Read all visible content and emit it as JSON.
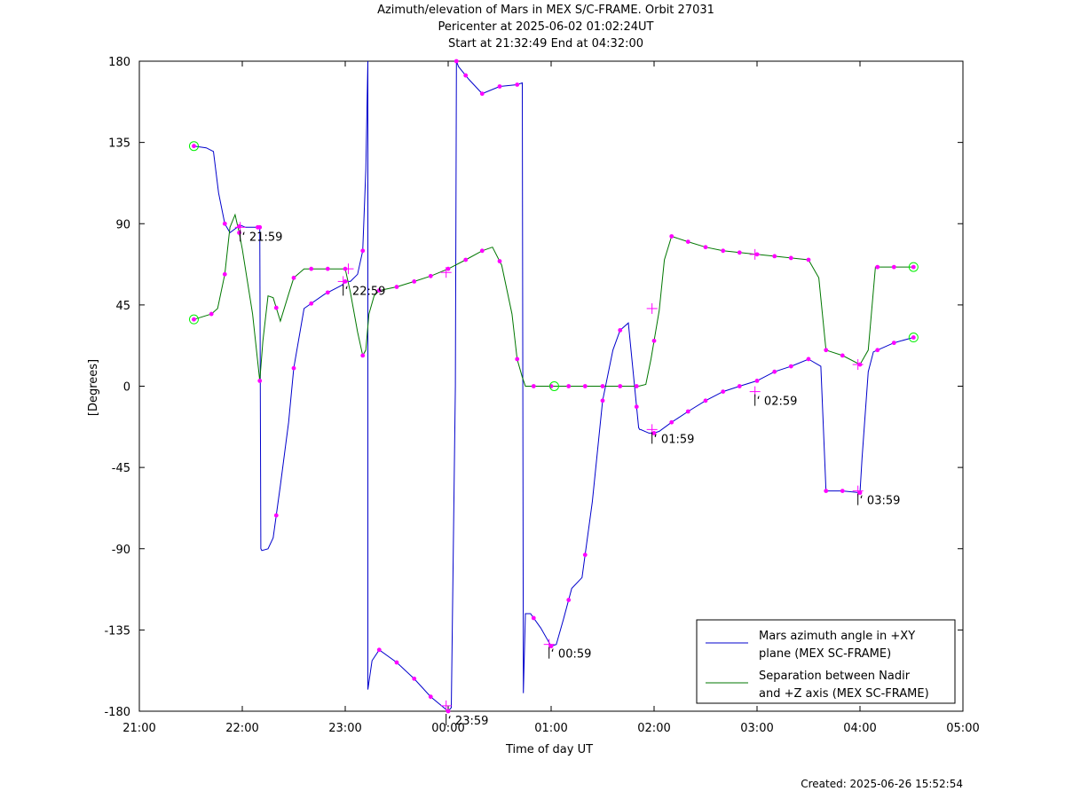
{
  "titles": {
    "line1": "Azimuth/elevation of Mars in MEX S/C-FRAME.  Orbit 27031",
    "line2": "Pericenter at 2025-06-02 01:02:24UT",
    "line3": "Start at 21:32:49 End at 04:32:00"
  },
  "footer": {
    "created": "Created: 2025-06-26 15:52:54"
  },
  "chart_data": {
    "type": "line",
    "xlabel": "Time of day UT",
    "ylabel": "[Degrees]",
    "xlim": [
      21.0,
      29.0
    ],
    "ylim": [
      -180,
      180
    ],
    "x_ticks": [
      21,
      22,
      23,
      24,
      25,
      26,
      27,
      28,
      29
    ],
    "x_tick_labels": [
      "21:00",
      "22:00",
      "23:00",
      "00:00",
      "01:00",
      "02:00",
      "03:00",
      "04:00",
      "05:00"
    ],
    "y_ticks": [
      180,
      135,
      90,
      45,
      0,
      -45,
      -90,
      -135,
      -180
    ],
    "y_tick_labels": [
      "180",
      "135",
      "90",
      "45",
      "0",
      "-45",
      "-90",
      "-135",
      "-180"
    ],
    "grid": false,
    "legend_position": "bottom-right",
    "colors": {
      "azimuth": "#0000cc",
      "separation": "#007700",
      "markers": "#ff00ff",
      "endpoints": "#00ee00"
    },
    "series": [
      {
        "name": "Mars azimuth angle in +XY plane (MEX SC-FRAME)",
        "legend_lines": [
          "Mars azimuth angle in +XY",
          "plane (MEX SC-FRAME)"
        ],
        "x": [
          21.53,
          21.65,
          21.72,
          21.77,
          21.83,
          21.88,
          21.95,
          21.99,
          22.03,
          22.1,
          22.17,
          22.18,
          22.19,
          22.25,
          22.3,
          22.37,
          22.45,
          22.5,
          22.6,
          22.8,
          22.97,
          23.0,
          23.05,
          23.12,
          23.17,
          23.2,
          23.22,
          23.22,
          23.26,
          23.33,
          23.5,
          23.67,
          23.83,
          24.0,
          24.03,
          24.07,
          24.08,
          24.1,
          24.2,
          24.33,
          24.5,
          24.67,
          24.72,
          24.73,
          24.75,
          24.8,
          24.9,
          25.0,
          25.05,
          25.12,
          25.2,
          25.3,
          25.4,
          25.5,
          25.6,
          25.67,
          25.75,
          25.85,
          25.86,
          25.87,
          25.95,
          26.0,
          26.05,
          26.17,
          26.33,
          26.5,
          26.67,
          26.83,
          27.0,
          27.17,
          27.33,
          27.5,
          27.62,
          27.67,
          27.83,
          28.0,
          28.02,
          28.08,
          28.13,
          28.33,
          28.52
        ],
        "y": [
          133,
          132,
          130,
          107,
          90,
          85,
          88,
          89,
          88,
          88,
          88,
          -90,
          -91,
          -90,
          -84,
          -55,
          -20,
          10,
          43,
          51,
          56,
          58,
          58,
          62,
          75,
          120,
          180,
          -168,
          -152,
          -146,
          -153,
          -162,
          -172,
          -180,
          -178,
          0,
          180,
          177,
          170,
          162,
          166,
          167,
          168,
          -170,
          -126,
          -126,
          -134,
          -144,
          -143,
          -129,
          -112,
          -106,
          -64,
          -8,
          20,
          31,
          35,
          -23,
          -24,
          -24,
          -26,
          -26,
          -25,
          -20,
          -14,
          -8,
          -3,
          0,
          3,
          8,
          11,
          15,
          11,
          -58,
          -58,
          -59,
          -40,
          8,
          19,
          24,
          27
        ]
      },
      {
        "name": "Separation between Nadir and +Z axis (MEX SC-FRAME)",
        "legend_lines": [
          "Separation between Nadir",
          "and +Z axis (MEX SC-FRAME)"
        ],
        "x": [
          21.53,
          21.7,
          21.76,
          21.83,
          21.88,
          21.93,
          21.97,
          22.0,
          22.1,
          22.17,
          22.2,
          22.25,
          22.3,
          22.37,
          22.45,
          22.5,
          22.6,
          22.75,
          22.9,
          23.0,
          23.05,
          23.12,
          23.17,
          23.2,
          23.23,
          23.28,
          23.33,
          23.5,
          23.67,
          23.83,
          24.0,
          24.17,
          24.33,
          24.43,
          24.52,
          24.62,
          24.67,
          24.72,
          24.75,
          25.0,
          25.5,
          25.85,
          25.92,
          25.97,
          26.05,
          26.1,
          26.17,
          26.33,
          26.5,
          26.67,
          26.83,
          27.0,
          27.17,
          27.33,
          27.5,
          27.6,
          27.67,
          27.83,
          28.0,
          28.08,
          28.15,
          28.33,
          28.52
        ],
        "y": [
          37,
          40,
          43,
          62,
          88,
          95,
          85,
          76,
          40,
          3,
          25,
          50,
          49,
          36,
          51,
          60,
          65,
          65,
          65,
          65,
          52,
          30,
          17,
          20,
          40,
          50,
          53,
          55,
          58,
          61,
          65,
          70,
          75,
          77,
          67,
          40,
          15,
          5,
          0,
          0,
          0,
          0,
          1,
          15,
          42,
          70,
          83,
          80,
          77,
          75,
          74,
          73,
          72,
          71,
          70,
          60,
          20,
          17,
          12,
          20,
          66,
          66,
          66
        ]
      }
    ],
    "magenta_markers": {
      "azimuth_x": [
        21.53,
        21.83,
        21.97,
        22.15,
        22.17,
        22.33,
        22.5,
        22.67,
        22.83,
        23.0,
        23.17,
        23.33,
        23.5,
        23.67,
        23.83,
        24.0,
        24.08,
        24.17,
        24.33,
        24.5,
        24.67,
        24.83,
        25.0,
        25.17,
        25.33,
        25.5,
        25.67,
        25.83,
        26.0,
        26.17,
        26.33,
        26.5,
        26.67,
        26.83,
        27.0,
        27.17,
        27.33,
        27.5,
        27.67,
        27.83,
        28.0,
        28.17,
        28.33,
        28.52
      ],
      "separation_x": [
        21.53,
        21.7,
        21.83,
        21.97,
        22.17,
        22.33,
        22.5,
        22.67,
        22.83,
        23.0,
        23.17,
        23.33,
        23.5,
        23.67,
        23.83,
        24.0,
        24.17,
        24.33,
        24.5,
        24.67,
        24.83,
        25.0,
        25.17,
        25.33,
        25.5,
        25.67,
        25.83,
        26.0,
        26.17,
        26.33,
        26.5,
        26.67,
        26.83,
        27.0,
        27.17,
        27.33,
        27.5,
        27.67,
        27.83,
        28.0,
        28.17,
        28.33,
        28.52
      ]
    },
    "cross_markers": [
      {
        "x": 21.98,
        "y": 88
      },
      {
        "x": 22.98,
        "y": 58
      },
      {
        "x": 23.03,
        "y": 65
      },
      {
        "x": 23.98,
        "y": 63
      },
      {
        "x": 23.98,
        "y": -177
      },
      {
        "x": 24.98,
        "y": -143
      },
      {
        "x": 25.98,
        "y": -24
      },
      {
        "x": 25.98,
        "y": 43
      },
      {
        "x": 26.98,
        "y": -3
      },
      {
        "x": 26.98,
        "y": 73
      },
      {
        "x": 27.98,
        "y": -58
      },
      {
        "x": 27.98,
        "y": 12
      }
    ],
    "endpoint_circles": [
      {
        "x": 21.53,
        "y": 133
      },
      {
        "x": 21.53,
        "y": 37
      },
      {
        "x": 25.03,
        "y": 0
      },
      {
        "x": 28.52,
        "y": 27
      },
      {
        "x": 28.52,
        "y": 66
      }
    ],
    "annotations": [
      {
        "text": "21:59",
        "x": 21.98,
        "y": 88
      },
      {
        "text": "22:59",
        "x": 22.98,
        "y": 58
      },
      {
        "text": "23:59",
        "x": 23.98,
        "y": -180
      },
      {
        "text": "00:59",
        "x": 24.98,
        "y": -143
      },
      {
        "text": "01:59",
        "x": 25.98,
        "y": -24
      },
      {
        "text": "02:59",
        "x": 26.98,
        "y": -3
      },
      {
        "text": "03:59",
        "x": 27.98,
        "y": -58
      }
    ]
  }
}
